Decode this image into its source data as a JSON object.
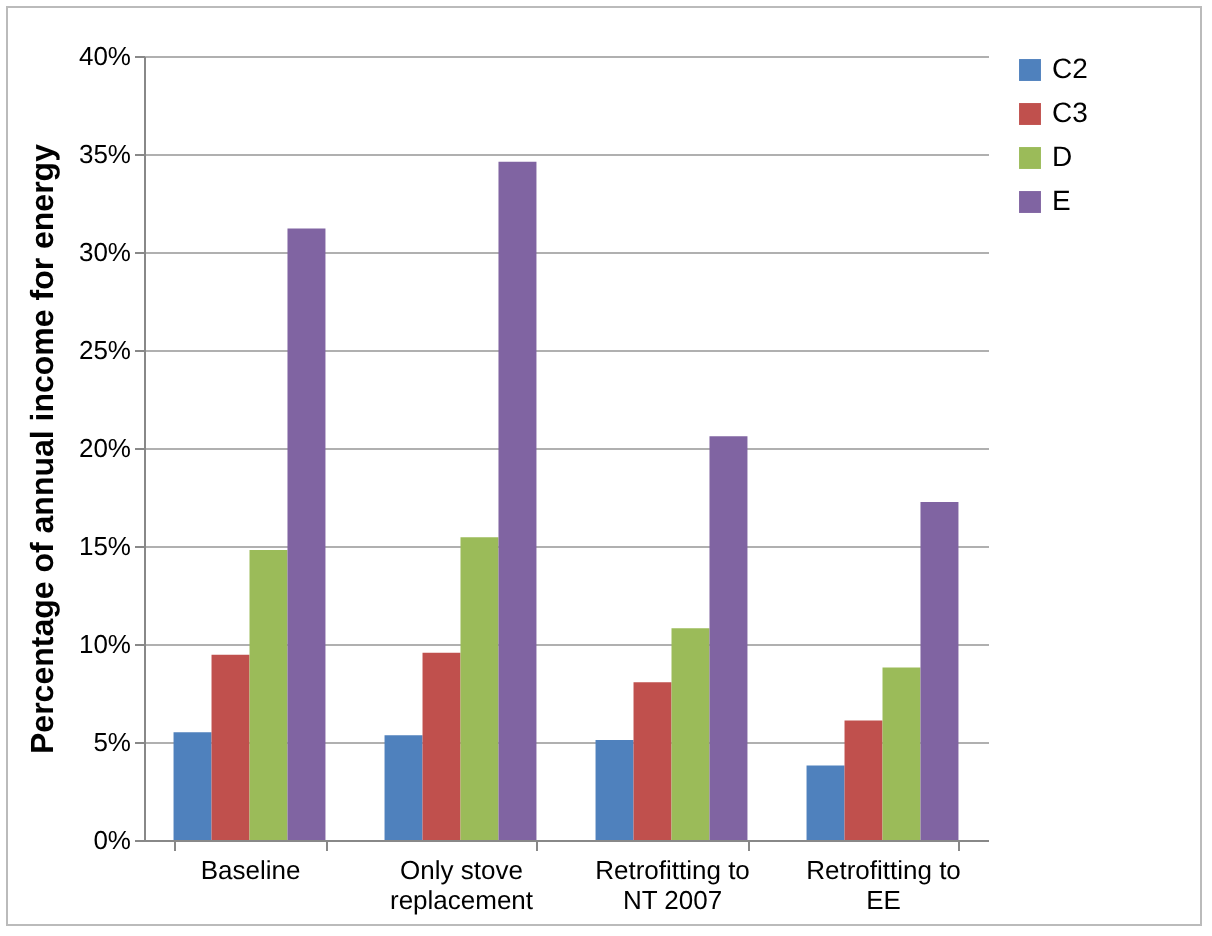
{
  "chart_data": {
    "type": "bar",
    "ylabel": "Percentage of annual income for energy",
    "categories": [
      "Baseline",
      "Only stove replacement",
      "Retrofitting to NT 2007",
      "Retrofitting to EE"
    ],
    "series": [
      {
        "name": "C2",
        "color": "#4f81bd",
        "values": [
          5.5,
          5.35,
          5.1,
          3.8
        ]
      },
      {
        "name": "C3",
        "color": "#c0504d",
        "values": [
          9.45,
          9.55,
          8.05,
          6.1
        ]
      },
      {
        "name": "D",
        "color": "#9bbb59",
        "values": [
          14.8,
          15.45,
          10.8,
          8.8
        ]
      },
      {
        "name": "E",
        "color": "#8064a2",
        "values": [
          31.2,
          34.6,
          20.6,
          17.25
        ]
      }
    ],
    "ylim": [
      0,
      40
    ],
    "yticks": [
      {
        "value": 0,
        "label": "0%"
      },
      {
        "value": 5,
        "label": "5%"
      },
      {
        "value": 10,
        "label": "10%"
      },
      {
        "value": 15,
        "label": "15%"
      },
      {
        "value": 20,
        "label": "20%"
      },
      {
        "value": 25,
        "label": "25%"
      },
      {
        "value": 30,
        "label": "30%"
      },
      {
        "value": 35,
        "label": "35%"
      },
      {
        "value": 40,
        "label": "40%"
      }
    ],
    "grid": "y",
    "legend": "right"
  }
}
